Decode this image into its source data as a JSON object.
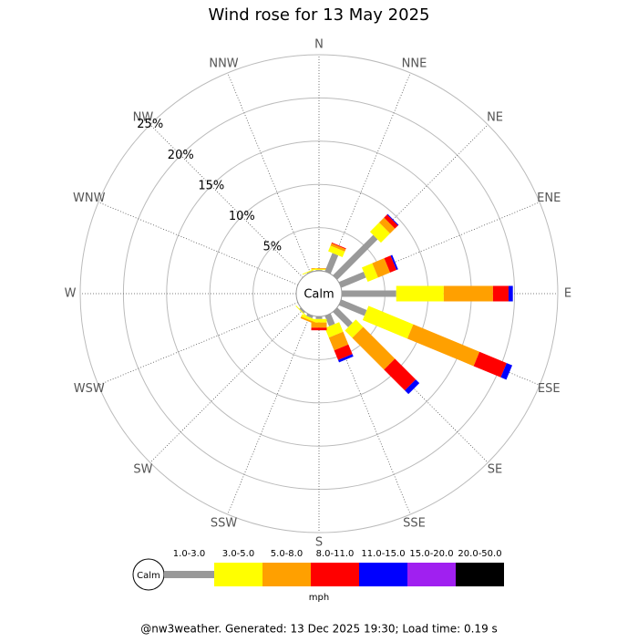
{
  "chart_data": {
    "type": "windrose",
    "title": "Wind rose for 13 May 2025",
    "directions": [
      "N",
      "NNE",
      "NE",
      "ENE",
      "E",
      "ESE",
      "SE",
      "SSE",
      "S",
      "SSW",
      "SW",
      "WSW",
      "W",
      "WNW",
      "NW",
      "NNW"
    ],
    "series": [
      {
        "name": "1.0-3.0",
        "color": "#999999",
        "values": [
          0.1,
          2.3,
          6.6,
          3.1,
          6.3,
          3.2,
          2.5,
          1.3,
          0.3,
          0.3,
          0.2,
          0,
          0,
          0,
          0,
          0.1
        ]
      },
      {
        "name": "3.0-5.0",
        "color": "#ffff00",
        "values": [
          0.1,
          0.7,
          1.5,
          1.3,
          5.5,
          5.6,
          1.2,
          1.2,
          0.4,
          0.3,
          0.1,
          0,
          0,
          0,
          0,
          0.1
        ]
      },
      {
        "name": "5.0-8.0",
        "color": "#ffa000",
        "values": [
          0.1,
          0.3,
          0.8,
          1.5,
          5.7,
          8.3,
          5.2,
          1.6,
          0.6,
          0.2,
          0,
          0,
          0,
          0,
          0,
          0
        ]
      },
      {
        "name": "8.0-11.0",
        "color": "#ff0000",
        "values": [
          0,
          0.1,
          0.5,
          0.8,
          1.8,
          3.4,
          3.4,
          1.2,
          0.3,
          0,
          0,
          0,
          0,
          0,
          0,
          0
        ]
      },
      {
        "name": "11.0-15.0",
        "color": "#0000ff",
        "values": [
          0,
          0,
          0.1,
          0.2,
          0.5,
          0.7,
          0.6,
          0.3,
          0,
          0,
          0,
          0,
          0,
          0,
          0,
          0
        ]
      },
      {
        "name": "15.0-20.0",
        "color": "#a020f0",
        "values": [
          0,
          0,
          0,
          0,
          0,
          0,
          0,
          0,
          0,
          0,
          0,
          0,
          0,
          0,
          0,
          0
        ]
      },
      {
        "name": "20.0-50.0",
        "color": "#000000",
        "values": [
          0,
          0,
          0,
          0,
          0,
          0,
          0,
          0,
          0,
          0,
          0,
          0,
          0,
          0,
          0,
          0
        ]
      }
    ],
    "rlim": [
      0,
      25
    ],
    "rticks": [
      {
        "value": 5,
        "label": "5%"
      },
      {
        "value": 10,
        "label": "10%"
      },
      {
        "value": 15,
        "label": "15%"
      },
      {
        "value": 20,
        "label": "20%"
      },
      {
        "value": 25,
        "label": "25%"
      }
    ],
    "calm_label": "Calm",
    "unit": "mph",
    "footer": "@nw3weather. Generated: 13 Dec 2025 19:30; Load time: 0.19 s"
  }
}
